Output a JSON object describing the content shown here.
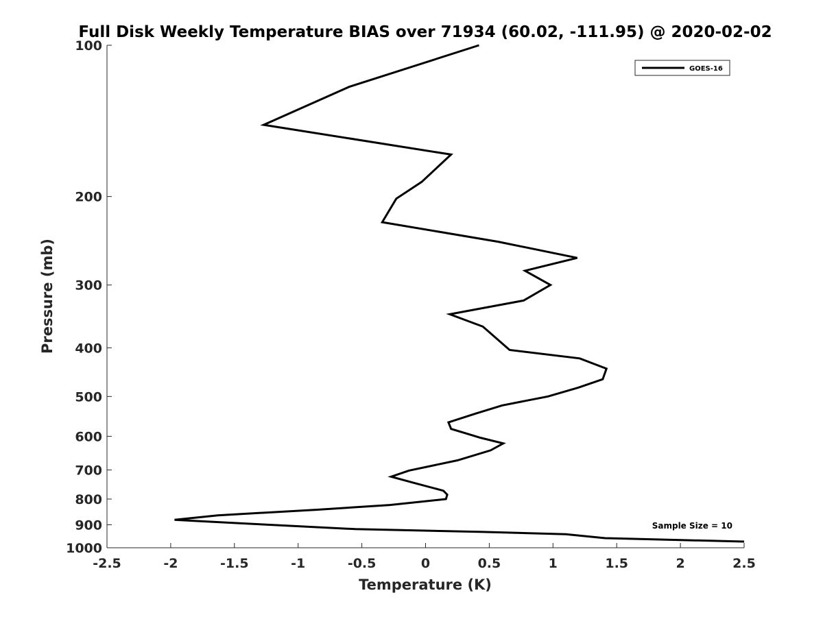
{
  "chart_data": {
    "type": "line",
    "title": "Full Disk Weekly Temperature BIAS over 71934 (60.02, -111.95) @ 2020-02-02",
    "xlabel": "Temperature (K)",
    "ylabel": "Pressure (mb)",
    "xlim": [
      -2.5,
      2.5
    ],
    "ylim": [
      100,
      1000
    ],
    "yscale": "log",
    "y_reversed": true,
    "grid": false,
    "x_ticks": [
      -2.5,
      -2,
      -1.5,
      -1,
      -0.5,
      0,
      0.5,
      1,
      1.5,
      2,
      2.5
    ],
    "x_tick_labels": [
      "-2.5",
      "-2",
      "-1.5",
      "-1",
      "-0.5",
      "0",
      "0.5",
      "1",
      "1.5",
      "2",
      "2.5"
    ],
    "y_ticks": [
      100,
      200,
      300,
      400,
      500,
      600,
      700,
      800,
      900,
      1000
    ],
    "y_tick_labels": [
      "100",
      "200",
      "300",
      "400",
      "500",
      "600",
      "700",
      "800",
      "900",
      "1000"
    ],
    "legend": {
      "position": "top-right",
      "entries": [
        "GOES-16"
      ]
    },
    "annotations": [
      "Sample Size = 10"
    ],
    "series": [
      {
        "name": "GOES-16",
        "color": "#000000",
        "points": [
          {
            "t": 0.42,
            "p": 100
          },
          {
            "t": -0.6,
            "p": 121
          },
          {
            "t": -1.27,
            "p": 144
          },
          {
            "t": 0.2,
            "p": 165
          },
          {
            "t": -0.03,
            "p": 187
          },
          {
            "t": -0.23,
            "p": 202
          },
          {
            "t": -0.34,
            "p": 225
          },
          {
            "t": 0.57,
            "p": 246
          },
          {
            "t": 1.19,
            "p": 265
          },
          {
            "t": 0.78,
            "p": 281
          },
          {
            "t": 0.98,
            "p": 300
          },
          {
            "t": 0.77,
            "p": 322
          },
          {
            "t": 0.19,
            "p": 343
          },
          {
            "t": 0.45,
            "p": 363
          },
          {
            "t": 0.66,
            "p": 404
          },
          {
            "t": 1.21,
            "p": 420
          },
          {
            "t": 1.42,
            "p": 440
          },
          {
            "t": 1.39,
            "p": 462
          },
          {
            "t": 1.2,
            "p": 480
          },
          {
            "t": 0.96,
            "p": 500
          },
          {
            "t": 0.6,
            "p": 521
          },
          {
            "t": 0.39,
            "p": 541
          },
          {
            "t": 0.18,
            "p": 563
          },
          {
            "t": 0.2,
            "p": 580
          },
          {
            "t": 0.43,
            "p": 604
          },
          {
            "t": 0.61,
            "p": 620
          },
          {
            "t": 0.51,
            "p": 640
          },
          {
            "t": 0.25,
            "p": 670
          },
          {
            "t": -0.13,
            "p": 702
          },
          {
            "t": -0.27,
            "p": 722
          },
          {
            "t": -0.09,
            "p": 743
          },
          {
            "t": 0.14,
            "p": 770
          },
          {
            "t": 0.17,
            "p": 784
          },
          {
            "t": 0.16,
            "p": 800
          },
          {
            "t": -0.28,
            "p": 822
          },
          {
            "t": -0.85,
            "p": 840
          },
          {
            "t": -1.63,
            "p": 862
          },
          {
            "t": -1.97,
            "p": 880
          },
          {
            "t": -1.3,
            "p": 898
          },
          {
            "t": -0.55,
            "p": 918
          },
          {
            "t": 0.45,
            "p": 930
          },
          {
            "t": 1.1,
            "p": 940
          },
          {
            "t": 1.41,
            "p": 957
          },
          {
            "t": 2.5,
            "p": 972
          }
        ]
      }
    ]
  }
}
